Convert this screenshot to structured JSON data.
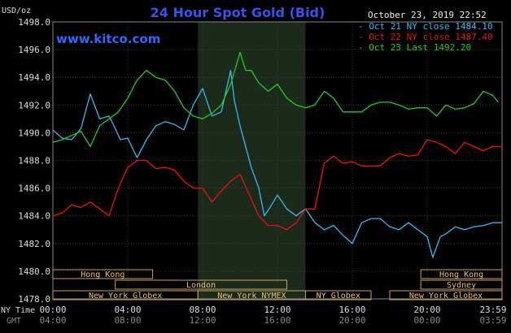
{
  "header": {
    "unit": "USD/oz",
    "title": "24 Hour Spot Gold (Bid)",
    "timestamp": "October 23, 2019 22:52",
    "watermark": "www.kitco.com"
  },
  "chart_data": {
    "type": "line",
    "title": "24 Hour Spot Gold (Bid)",
    "ylabel": "USD/oz",
    "ylim": [
      1478,
      1498
    ],
    "yticks": [
      "1498.0",
      "1496.0",
      "1494.0",
      "1492.0",
      "1490.0",
      "1488.0",
      "1486.0",
      "1484.0",
      "1482.0",
      "1480.0",
      "1478.0"
    ],
    "xlim": [
      0,
      24
    ],
    "xticks_ny": [
      "00:00",
      "04:00",
      "08:00",
      "12:00",
      "16:00",
      "20:00",
      "23:59"
    ],
    "xticks_gmt": [
      "04:00",
      "08:00",
      "12:00",
      "16:00",
      "20:00",
      "00:00",
      "03:59"
    ],
    "x_axis_label_ny": "NY Time",
    "x_axis_label_gmt": "GMT",
    "highlight_range": [
      7.75,
      13.5
    ],
    "legend_position": "top-right",
    "series": [
      {
        "name": "Oct 21 NY close 1484.10",
        "color": "#33bbee",
        "x": [
          0,
          0.5,
          1,
          1.5,
          2,
          2.5,
          3,
          3.3,
          3.6,
          4,
          4.5,
          5,
          5.5,
          6,
          6.5,
          7,
          7.5,
          8,
          8.5,
          9,
          9.5,
          9.7,
          10,
          10.3,
          10.6,
          11,
          11.3,
          11.6,
          12,
          12.5,
          13,
          13.5,
          14,
          14.5,
          15,
          15.5,
          16,
          16.5,
          17,
          17.5,
          18,
          18.5,
          19,
          19.5,
          20,
          20.3,
          20.7,
          21,
          21.5,
          22,
          22.5,
          23,
          23.5,
          24
        ],
        "values": [
          1490.2,
          1489.6,
          1489.5,
          1490.3,
          1492.8,
          1491.0,
          1491.2,
          1490.4,
          1489.5,
          1489.6,
          1488.2,
          1489.5,
          1490.5,
          1490.8,
          1490.6,
          1490.2,
          1492.0,
          1493.2,
          1491.2,
          1491.5,
          1494.5,
          1492.3,
          1490.5,
          1489.0,
          1487.5,
          1486.0,
          1484.0,
          1484.6,
          1485.5,
          1484.5,
          1484.0,
          1484.5,
          1483.5,
          1483.0,
          1483.3,
          1482.6,
          1482.0,
          1483.5,
          1483.8,
          1483.8,
          1483.2,
          1483.0,
          1483.5,
          1483.0,
          1482.5,
          1481.0,
          1482.5,
          1482.7,
          1483.2,
          1483.0,
          1483.2,
          1483.3,
          1483.5,
          1483.5
        ]
      },
      {
        "name": "Oct 22 NY close 1487.40",
        "color": "#ee1111",
        "x": [
          0,
          0.5,
          1,
          1.5,
          2,
          2.5,
          3,
          3.5,
          4,
          4.5,
          5,
          5.5,
          6,
          6.5,
          7,
          7.5,
          8,
          8.5,
          9,
          9.5,
          10,
          10.5,
          11,
          11.5,
          12,
          12.5,
          13,
          13.5,
          14,
          14.5,
          15,
          15.5,
          16,
          16.5,
          17,
          17.5,
          18,
          18.5,
          19,
          19.5,
          20,
          20.5,
          21,
          21.5,
          22,
          22.5,
          23,
          23.5,
          24
        ],
        "values": [
          1484.0,
          1484.2,
          1484.8,
          1484.6,
          1485.0,
          1484.5,
          1484.0,
          1486.0,
          1487.5,
          1488.0,
          1488.0,
          1487.4,
          1487.5,
          1487.3,
          1486.5,
          1486.0,
          1486.0,
          1485.0,
          1485.8,
          1486.5,
          1487.0,
          1485.5,
          1484.0,
          1483.3,
          1483.3,
          1483.0,
          1483.5,
          1484.5,
          1484.5,
          1487.8,
          1488.3,
          1487.8,
          1487.9,
          1487.6,
          1487.6,
          1487.6,
          1488.2,
          1488.5,
          1488.3,
          1488.4,
          1489.5,
          1489.3,
          1489.0,
          1488.5,
          1489.3,
          1489.0,
          1488.7,
          1489.0,
          1489.0
        ]
      },
      {
        "name": "Oct 23 Last 1492.20",
        "color": "#22cc22",
        "x": [
          0,
          0.5,
          1,
          1.5,
          2,
          2.5,
          3,
          3.5,
          4,
          4.5,
          5,
          5.5,
          6,
          6.5,
          7,
          7.5,
          8,
          8.5,
          9,
          9.5,
          10,
          10.3,
          10.6,
          11,
          11.5,
          12,
          12.5,
          13,
          13.5,
          14,
          14.5,
          15,
          15.5,
          16,
          16.5,
          17,
          17.5,
          18,
          18.5,
          19,
          19.5,
          20,
          20.5,
          21,
          21.5,
          22,
          22.5,
          23,
          23.5,
          23.8
        ],
        "values": [
          1489.3,
          1489.5,
          1489.8,
          1490.1,
          1489.0,
          1490.5,
          1491.0,
          1491.5,
          1492.5,
          1493.8,
          1494.5,
          1494.0,
          1493.8,
          1493.0,
          1491.8,
          1491.2,
          1491.0,
          1491.4,
          1492.0,
          1493.5,
          1495.8,
          1494.5,
          1494.5,
          1493.6,
          1493.0,
          1493.5,
          1492.5,
          1492.0,
          1491.8,
          1492.0,
          1493.0,
          1492.5,
          1491.5,
          1491.5,
          1491.5,
          1492.0,
          1492.2,
          1492.2,
          1492.0,
          1491.7,
          1491.8,
          1491.8,
          1491.2,
          1492.0,
          1491.7,
          1491.8,
          1492.1,
          1493.0,
          1492.7,
          1492.2
        ]
      }
    ]
  },
  "sessions": {
    "row1": [
      {
        "label": "Hong Kong",
        "start": 0,
        "end": 5.33
      },
      {
        "label": "Hong Kong",
        "start": 19.66,
        "end": 24
      }
    ],
    "row2": [
      {
        "label": "London",
        "start": 3.33,
        "end": 12.5
      },
      {
        "label": "Sydney",
        "start": 19.66,
        "end": 24
      }
    ],
    "row3": [
      {
        "label": "New York Globex",
        "start": 0,
        "end": 7.75
      },
      {
        "label": "New York NYMEX",
        "start": 7.75,
        "end": 13.5
      },
      {
        "label": "NY Globex",
        "start": 13.5,
        "end": 17
      },
      {
        "label": "New York Globex",
        "start": 18,
        "end": 24
      }
    ]
  }
}
